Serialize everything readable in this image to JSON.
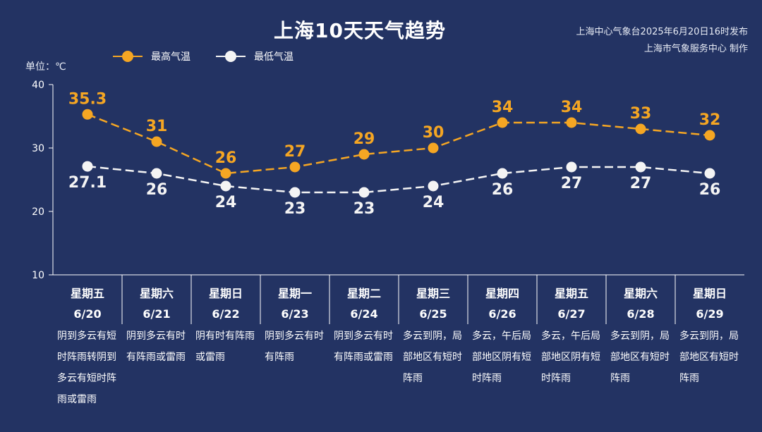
{
  "title": "上海10天天气趋势",
  "source_line1": "上海中心气象台2025年6月20日16时发布",
  "source_line2": "上海市气象服务中心 制作",
  "unit_label": "单位：℃",
  "colors": {
    "background": "#233363",
    "high": "#f5a623",
    "low": "#f4f4f4",
    "grid": "#ffffff"
  },
  "chart_data": {
    "type": "line",
    "title": "上海10天天气趋势",
    "ylabel": "单位：℃",
    "ylim": [
      10,
      40
    ],
    "yticks": [
      10,
      20,
      30,
      40
    ],
    "grid": false,
    "legend_position": "top-left",
    "categories": [
      "6/20",
      "6/21",
      "6/22",
      "6/23",
      "6/24",
      "6/25",
      "6/26",
      "6/27",
      "6/28",
      "6/29"
    ],
    "weekdays": [
      "星期五",
      "星期六",
      "星期日",
      "星期一",
      "星期二",
      "星期三",
      "星期四",
      "星期五",
      "星期六",
      "星期日"
    ],
    "series": [
      {
        "name": "最高气温",
        "values": [
          35.3,
          31,
          26,
          27,
          29,
          30,
          34,
          34,
          33,
          32
        ],
        "labels": [
          "35.3",
          "31",
          "26",
          "27",
          "29",
          "30",
          "34",
          "34",
          "33",
          "32"
        ],
        "color": "#f5a623"
      },
      {
        "name": "最低气温",
        "values": [
          27.1,
          26,
          24,
          23,
          23,
          24,
          26,
          27,
          27,
          26
        ],
        "labels": [
          "27.1",
          "26",
          "24",
          "23",
          "23",
          "24",
          "26",
          "27",
          "27",
          "26"
        ],
        "color": "#f4f4f4"
      }
    ],
    "weather": [
      "阴到多云有短时阵雨转阴到多云有短时阵雨或雷雨",
      "阴到多云有时有阵雨或雷雨",
      "阴有时有阵雨或雷雨",
      "阴到多云有时有阵雨",
      "阴到多云有时有阵雨或雷雨",
      "多云到阴，局部地区有短时阵雨",
      "多云，午后局部地区阴有短时阵雨",
      "多云，午后局部地区阴有短时阵雨",
      "多云到阴，局部地区有短时阵雨",
      "多云到阴，局部地区有短时阵雨"
    ]
  }
}
